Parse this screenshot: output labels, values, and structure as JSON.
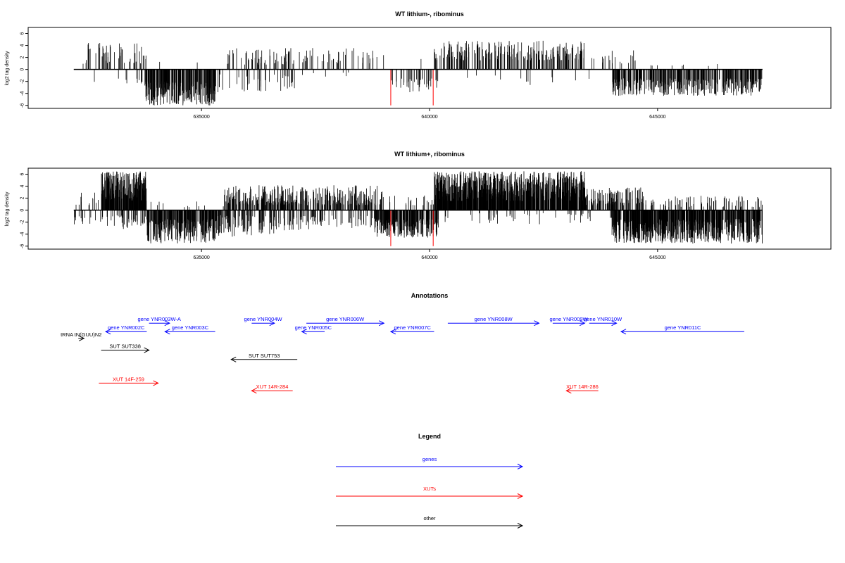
{
  "chart_data": [
    {
      "type": "bar",
      "title": "WT lithium-, ribominus",
      "xlabel": "",
      "ylabel": "log2 tag density",
      "xlim": [
        631200,
        648800
      ],
      "ylim": [
        -6.5,
        7
      ],
      "yticks": [
        6,
        4,
        2,
        0,
        -2,
        -4,
        -6
      ],
      "xticks": [
        635000,
        640000,
        645000
      ],
      "data_range": [
        632200,
        647300
      ],
      "grid": false,
      "highlight_color": "#ff0000",
      "highlights": [
        {
          "x": 639150,
          "y": -6
        },
        {
          "x": 640080,
          "y": -6
        }
      ],
      "plus_segments": [
        {
          "from": 632400,
          "to": 633800,
          "density": 0.55,
          "min": 0.8,
          "max": 4.5
        },
        {
          "from": 633900,
          "to": 635500,
          "density": 0.02,
          "min": 1,
          "max": 2
        },
        {
          "from": 635500,
          "to": 639000,
          "density": 0.45,
          "min": 0.8,
          "max": 3.6
        },
        {
          "from": 639000,
          "to": 640100,
          "density": 0.02,
          "min": 1,
          "max": 2
        },
        {
          "from": 640100,
          "to": 643400,
          "density": 1.0,
          "min": 1.5,
          "max": 4.8
        },
        {
          "from": 643400,
          "to": 644600,
          "density": 0.25,
          "min": 1,
          "max": 3.4
        },
        {
          "from": 644600,
          "to": 647200,
          "density": 0.05,
          "min": 0.5,
          "max": 1.2
        }
      ],
      "minus_segments": [
        {
          "from": 632300,
          "to": 633400,
          "density": 0.05,
          "min": 1.5,
          "max": 2.5
        },
        {
          "from": 633400,
          "to": 633700,
          "density": 0.3,
          "min": 1.5,
          "max": 2.5
        },
        {
          "from": 633750,
          "to": 635300,
          "density": 2.5,
          "min": 2,
          "max": 6
        },
        {
          "from": 635300,
          "to": 637100,
          "density": 0.35,
          "min": 0.8,
          "max": 3.8
        },
        {
          "from": 637100,
          "to": 639100,
          "density": 0.05,
          "min": 0.5,
          "max": 1.5
        },
        {
          "from": 639150,
          "to": 640200,
          "density": 0.6,
          "min": 1.5,
          "max": 3.8
        },
        {
          "from": 640200,
          "to": 644000,
          "density": 0.05,
          "min": 1,
          "max": 2.6
        },
        {
          "from": 644000,
          "to": 647300,
          "density": 1.7,
          "min": 1.5,
          "max": 4.4
        }
      ]
    },
    {
      "type": "bar",
      "title": "WT lithium+, ribominus",
      "xlabel": "",
      "ylabel": "log2 tag density",
      "xlim": [
        631200,
        648800
      ],
      "ylim": [
        -6.5,
        7
      ],
      "yticks": [
        6,
        4,
        2,
        0,
        -2,
        -4,
        -6
      ],
      "xticks": [
        635000,
        640000,
        645000
      ],
      "data_range": [
        632200,
        647300
      ],
      "grid": false,
      "highlight_color": "#ff0000",
      "highlights": [
        {
          "x": 639150,
          "y": -6
        },
        {
          "x": 640080,
          "y": -6
        }
      ],
      "plus_segments": [
        {
          "from": 632200,
          "to": 632800,
          "density": 0.3,
          "min": 0.8,
          "max": 3
        },
        {
          "from": 632800,
          "to": 633800,
          "density": 3.5,
          "min": 1.5,
          "max": 6.5
        },
        {
          "from": 633800,
          "to": 635500,
          "density": 0.1,
          "min": 0.5,
          "max": 1.5
        },
        {
          "from": 635500,
          "to": 639000,
          "density": 1.5,
          "min": 0.8,
          "max": 4.2
        },
        {
          "from": 639000,
          "to": 640100,
          "density": 0.3,
          "min": 0.8,
          "max": 2.5
        },
        {
          "from": 640100,
          "to": 643400,
          "density": 3.8,
          "min": 1.5,
          "max": 6.5
        },
        {
          "from": 643400,
          "to": 644700,
          "density": 1.3,
          "min": 0.8,
          "max": 3.8
        },
        {
          "from": 644700,
          "to": 647300,
          "density": 0.5,
          "min": 0.5,
          "max": 2.4
        }
      ],
      "minus_segments": [
        {
          "from": 632200,
          "to": 632800,
          "density": 0.3,
          "min": 1,
          "max": 2.6
        },
        {
          "from": 632800,
          "to": 633800,
          "density": 0.6,
          "min": 0.8,
          "max": 3.2
        },
        {
          "from": 633800,
          "to": 635300,
          "density": 2.5,
          "min": 1.5,
          "max": 5.6
        },
        {
          "from": 635300,
          "to": 636600,
          "density": 1.2,
          "min": 0.8,
          "max": 4.5
        },
        {
          "from": 636600,
          "to": 638800,
          "density": 0.6,
          "min": 0.8,
          "max": 3.4
        },
        {
          "from": 638800,
          "to": 640200,
          "density": 2.5,
          "min": 1.5,
          "max": 4.6
        },
        {
          "from": 640200,
          "to": 644000,
          "density": 0.2,
          "min": 0.5,
          "max": 2.4
        },
        {
          "from": 644000,
          "to": 647300,
          "density": 3.0,
          "min": 1.5,
          "max": 5.6
        }
      ]
    }
  ],
  "annotations": {
    "title": "Annotations",
    "features": [
      {
        "label": "tRNA tN(GUU)N2",
        "color": "#000000",
        "start": 632300,
        "end": 632350,
        "strand": "+",
        "row": 2.4
      },
      {
        "label": "gene YNR002C",
        "color": "#0000ff",
        "start": 632900,
        "end": 633800,
        "strand": "-",
        "row": 1.6
      },
      {
        "label": "gene YNR003W-A",
        "color": "#0000ff",
        "start": 633850,
        "end": 634300,
        "strand": "+",
        "row": 0.6
      },
      {
        "label": "gene YNR003C",
        "color": "#0000ff",
        "start": 634200,
        "end": 635300,
        "strand": "-",
        "row": 1.6
      },
      {
        "label": "gene YNR004W",
        "color": "#0000ff",
        "start": 636100,
        "end": 636600,
        "strand": "+",
        "row": 0.6
      },
      {
        "label": "gene YNR005C",
        "color": "#0000ff",
        "start": 637200,
        "end": 637700,
        "strand": "-",
        "row": 1.6
      },
      {
        "label": "gene YNR006W",
        "color": "#0000ff",
        "start": 637300,
        "end": 639000,
        "strand": "+",
        "row": 0.6
      },
      {
        "label": "gene YNR007C",
        "color": "#0000ff",
        "start": 639150,
        "end": 640100,
        "strand": "-",
        "row": 1.6
      },
      {
        "label": "gene YNR008W",
        "color": "#0000ff",
        "start": 640400,
        "end": 642400,
        "strand": "+",
        "row": 0.6
      },
      {
        "label": "gene YNR009W",
        "color": "#0000ff",
        "start": 642700,
        "end": 643400,
        "strand": "+",
        "row": 0.6
      },
      {
        "label": "gene YNR010W",
        "color": "#0000ff",
        "start": 643500,
        "end": 644100,
        "strand": "+",
        "row": 0.6
      },
      {
        "label": "gene YNR011C",
        "color": "#0000ff",
        "start": 644200,
        "end": 646900,
        "strand": "-",
        "row": 1.6
      },
      {
        "label": "SUT SUT338",
        "color": "#000000",
        "start": 632800,
        "end": 633850,
        "strand": "+",
        "row": 3.8
      },
      {
        "label": "SUT SUT753",
        "color": "#000000",
        "start": 635650,
        "end": 637100,
        "strand": "-",
        "row": 4.9
      },
      {
        "label": "XUT 14F-259",
        "color": "#ff0000",
        "start": 632750,
        "end": 634050,
        "strand": "+",
        "row": 7.7
      },
      {
        "label": "XUT 14R-284",
        "color": "#ff0000",
        "start": 636100,
        "end": 637000,
        "strand": "-",
        "row": 8.6
      },
      {
        "label": "XUT 14R-286",
        "color": "#ff0000",
        "start": 643000,
        "end": 643700,
        "strand": "-",
        "row": 8.6
      }
    ]
  },
  "legend": {
    "title": "Legend",
    "items": [
      {
        "label": "genes",
        "color": "#0000ff"
      },
      {
        "label": "XUTs",
        "color": "#ff0000"
      },
      {
        "label": "other",
        "color": "#000000"
      }
    ]
  }
}
